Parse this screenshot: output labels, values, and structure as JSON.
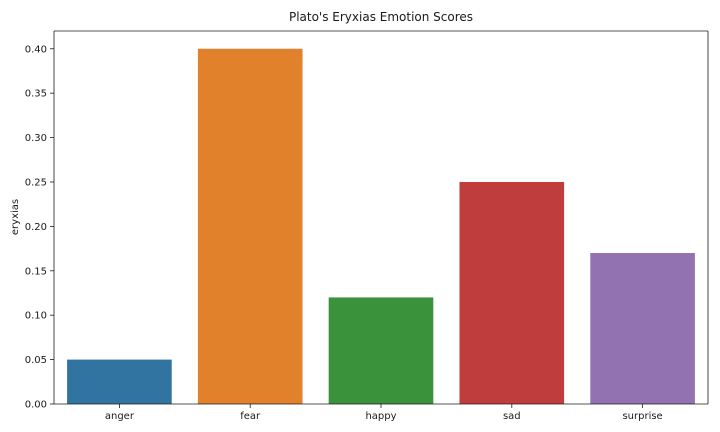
{
  "chart_data": {
    "type": "bar",
    "title": "Plato's Eryxias Emotion Scores",
    "xlabel": "",
    "ylabel": "eryxias",
    "categories": [
      "anger",
      "fear",
      "happy",
      "sad",
      "surprise"
    ],
    "values": [
      0.05,
      0.4,
      0.12,
      0.25,
      0.17
    ],
    "colors": [
      "#3274a1",
      "#e1812c",
      "#3a923a",
      "#c03d3e",
      "#9372b2"
    ],
    "ylim": [
      0,
      0.42
    ],
    "yticks": [
      "0.00",
      "0.05",
      "0.10",
      "0.15",
      "0.20",
      "0.25",
      "0.30",
      "0.35",
      "0.40"
    ],
    "grid": false,
    "legend": "none"
  }
}
